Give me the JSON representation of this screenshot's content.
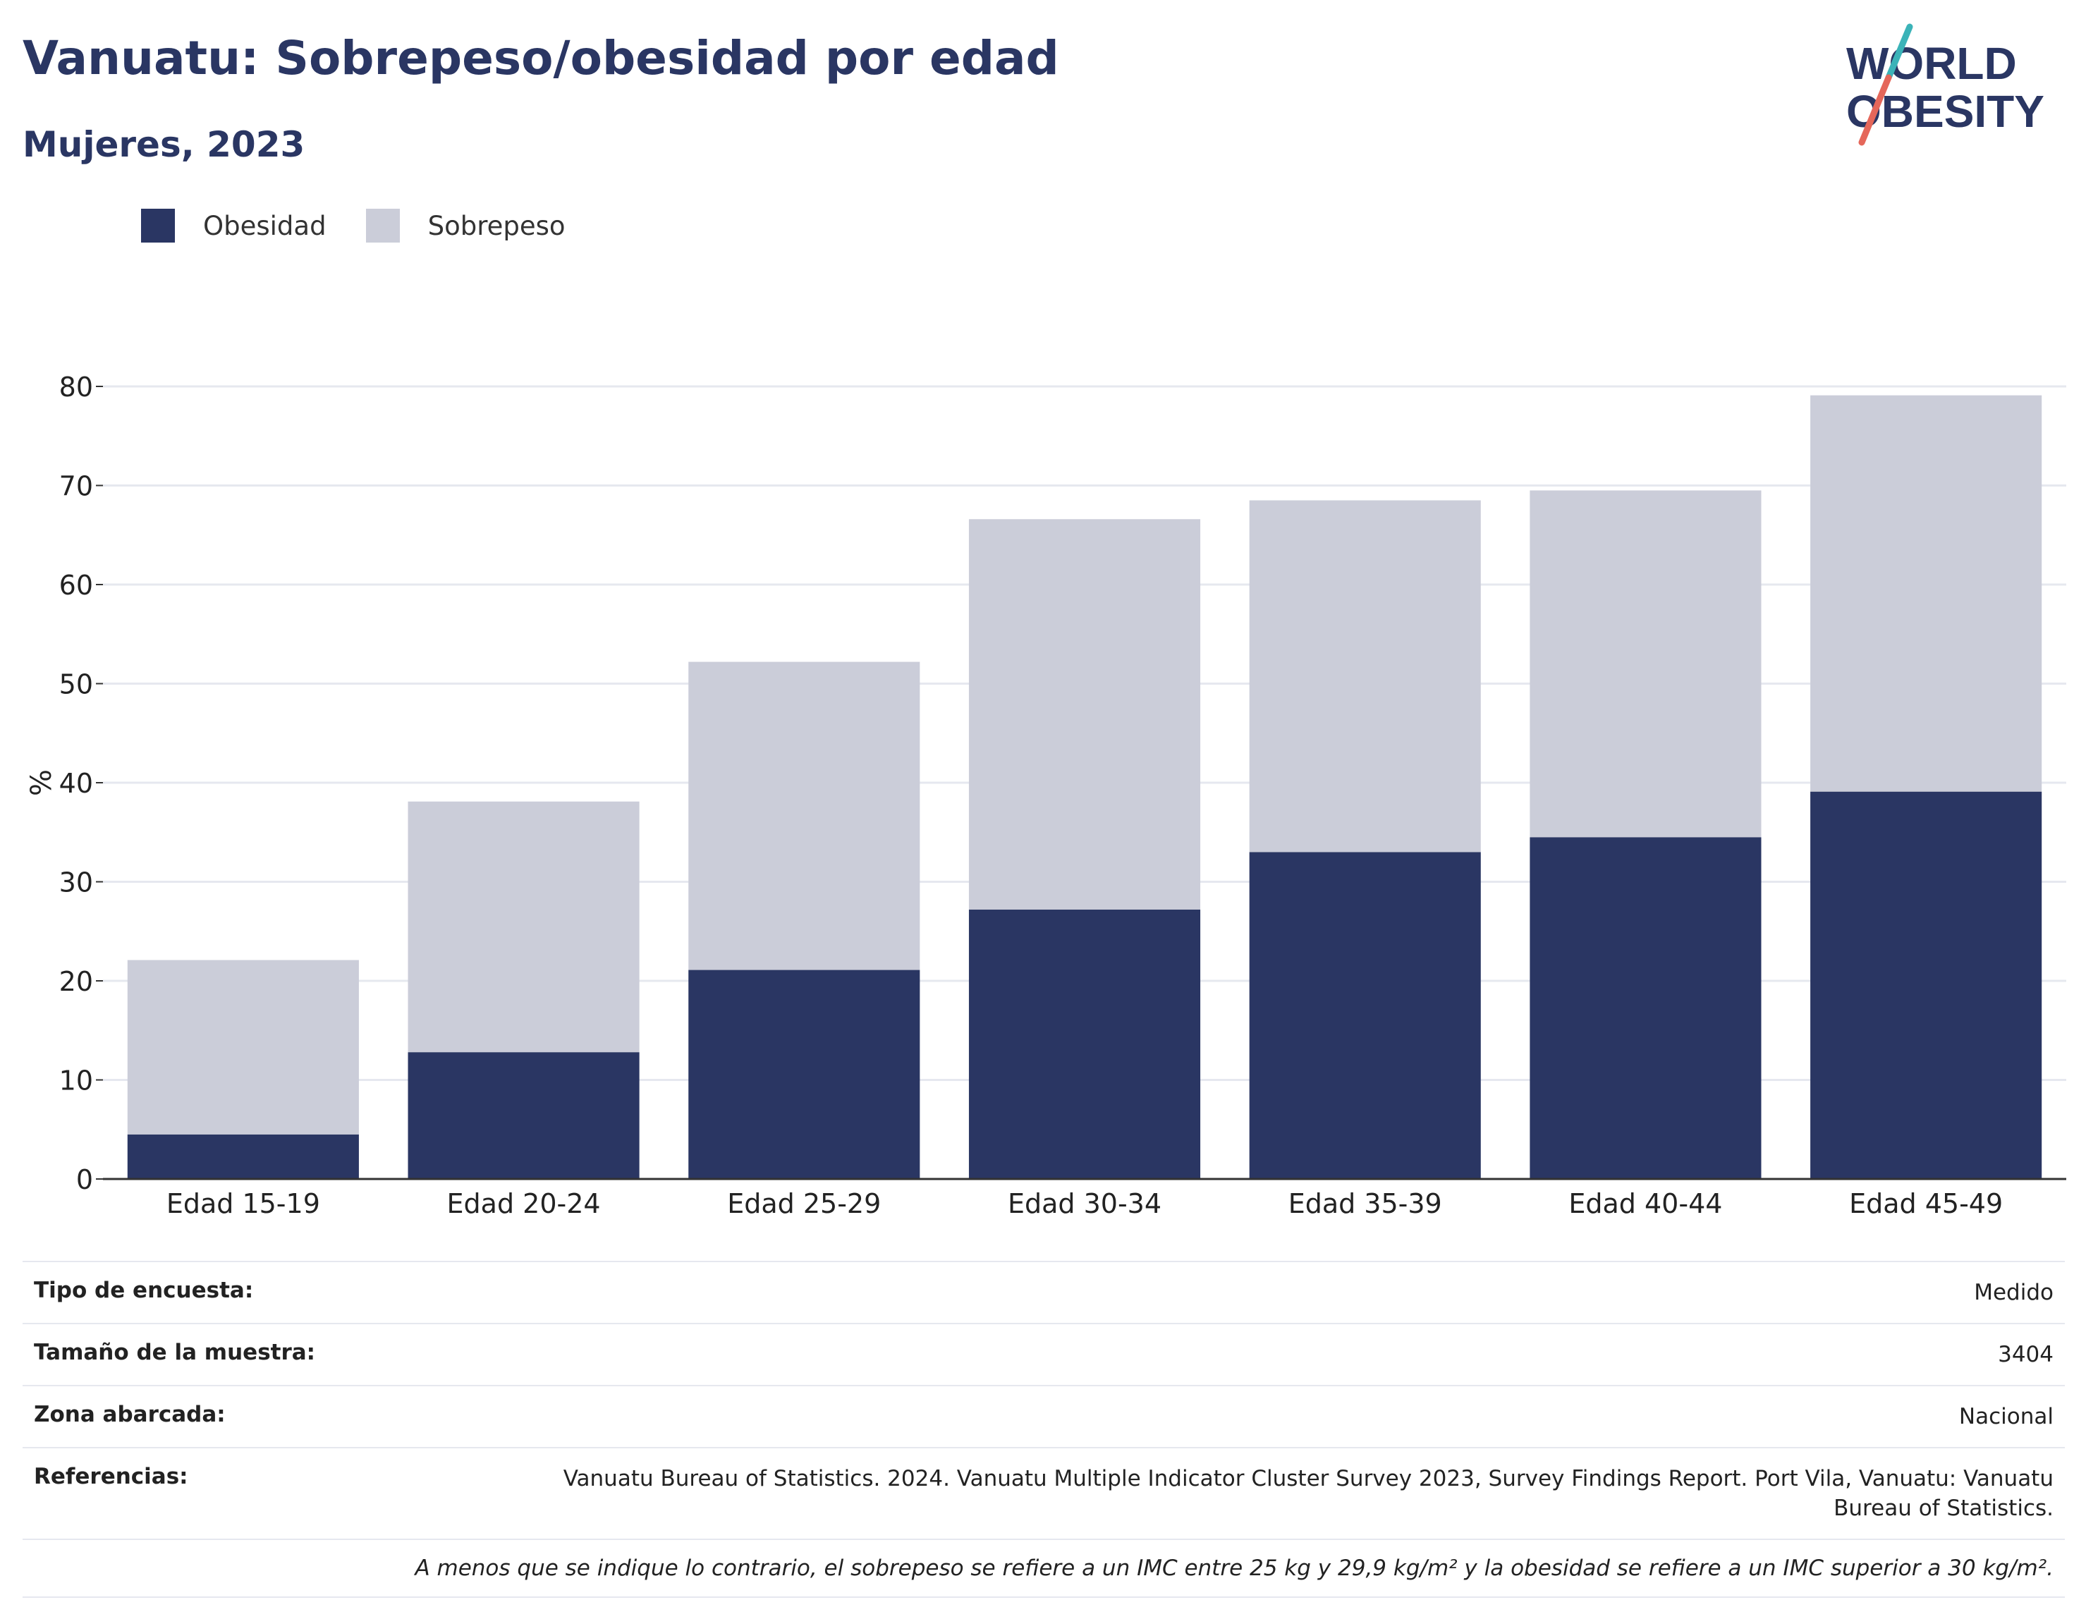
{
  "title": "Vanuatu: Sobrepeso/obesidad por edad",
  "subtitle": "Mujeres, 2023",
  "logo": {
    "line1": "WORLD",
    "line2": "OBESITY"
  },
  "colors": {
    "obesity": "#2a3663",
    "overweight": "#cbcdd9",
    "text": "#2a3663",
    "accent_teal": "#3bb3b8",
    "accent_coral": "#e5675a"
  },
  "legend": [
    {
      "label": "Obesidad",
      "color": "#2a3663"
    },
    {
      "label": "Sobrepeso",
      "color": "#cbcdd9"
    }
  ],
  "chart_data": {
    "type": "bar",
    "stacked": true,
    "categories": [
      "Edad 15-19",
      "Edad 20-24",
      "Edad 25-29",
      "Edad 30-34",
      "Edad 35-39",
      "Edad 40-44",
      "Edad 45-49"
    ],
    "series": [
      {
        "name": "Obesidad",
        "values": [
          4.5,
          12.8,
          21.1,
          27.2,
          33.0,
          34.5,
          39.1
        ]
      },
      {
        "name": "Sobrepeso",
        "values": [
          17.6,
          25.3,
          31.1,
          39.4,
          35.5,
          35.0,
          40.0
        ]
      }
    ],
    "ylabel": "%",
    "ylim": [
      0,
      80
    ],
    "yticks": [
      0,
      10,
      20,
      30,
      40,
      50,
      60,
      70,
      80
    ],
    "grid": true,
    "legend_position": "top-left"
  },
  "meta": {
    "rows": [
      {
        "key": "Tipo de encuesta:",
        "value": "Medido"
      },
      {
        "key": "Tamaño de la muestra:",
        "value": "3404"
      },
      {
        "key": "Zona abarcada:",
        "value": "Nacional"
      },
      {
        "key": "Referencias:",
        "value": "Vanuatu Bureau of Statistics. 2024. Vanuatu Multiple Indicator Cluster Survey 2023, Survey Findings Report. Port Vila, Vanuatu: Vanuatu Bureau of Statistics."
      }
    ],
    "note": "A menos que se indique lo contrario, el sobrepeso se refiere a un IMC entre 25 kg y 29,9 kg/m² y la obesidad se refiere a un IMC superior a 30 kg/m²."
  }
}
